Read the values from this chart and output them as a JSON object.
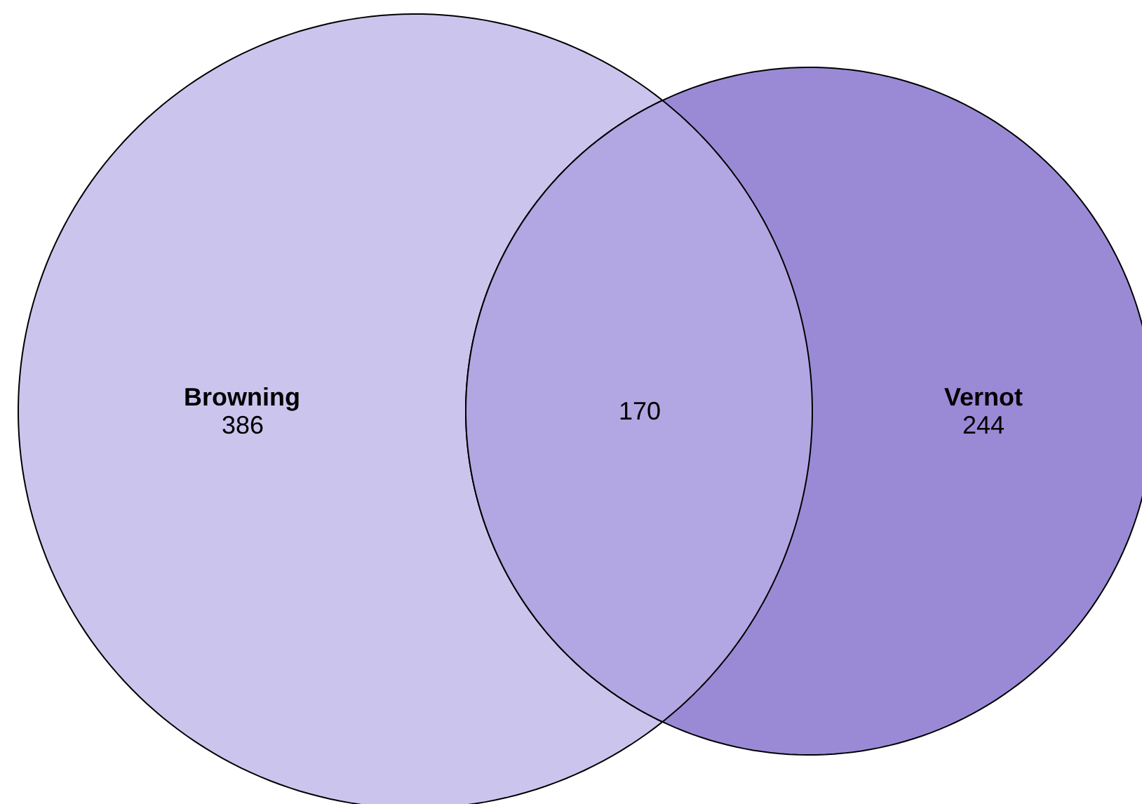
{
  "chart_data": {
    "type": "other",
    "categories": [
      "Browning",
      "Vernot"
    ],
    "values": [
      386,
      244
    ],
    "data_labels": true,
    "colors": [
      "#cbc5ee",
      "#9a8ad6"
    ],
    "annotations": [
      "170"
    ]
  }
}
